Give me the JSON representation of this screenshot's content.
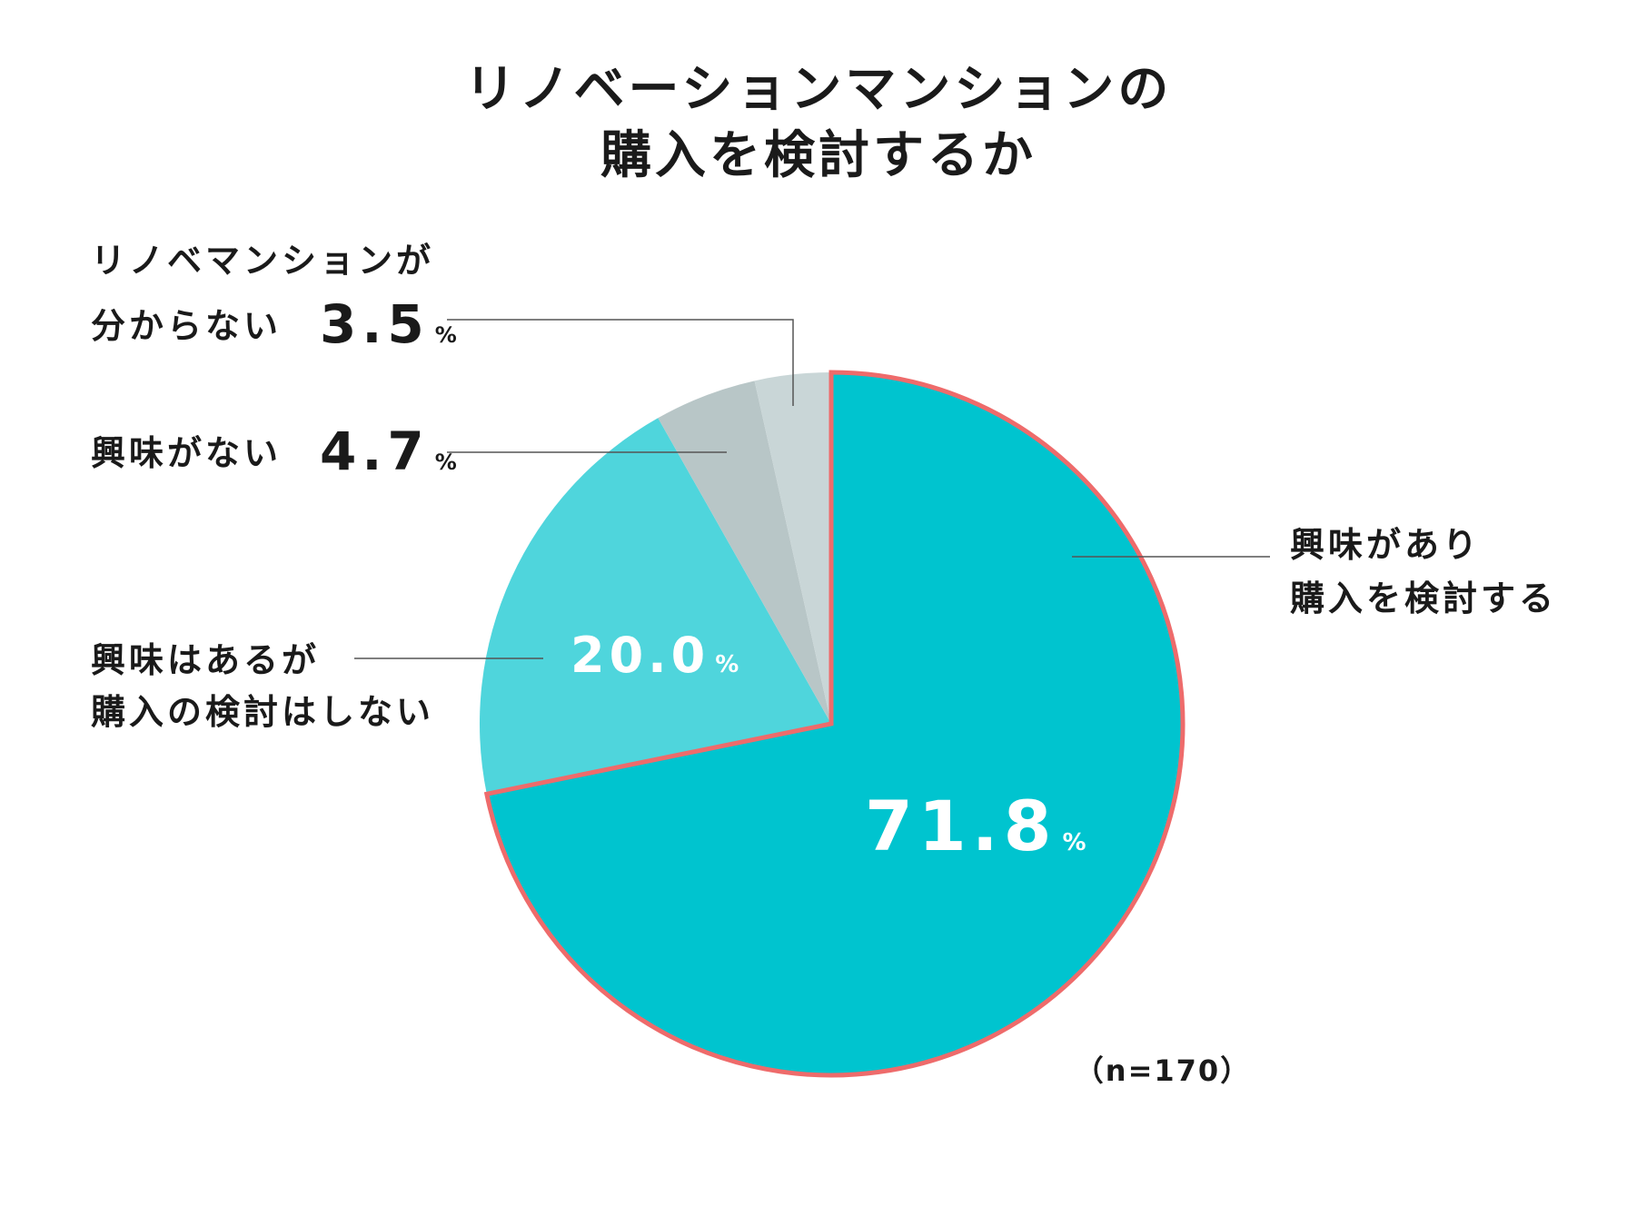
{
  "chart_data": {
    "type": "pie",
    "title_lines": [
      "リノベーションマンションの",
      "購入を検討するか"
    ],
    "slices": [
      {
        "label_lines": [
          "興味があり",
          "購入を検討する"
        ],
        "value": 71.8,
        "value_text": "71.8",
        "unit": "%",
        "color": "#00c4cf"
      },
      {
        "label_lines": [
          "興味はあるが",
          "購入の検討はしない"
        ],
        "value": 20.0,
        "value_text": "20.0",
        "unit": "%",
        "color": "#4fd5dc"
      },
      {
        "label_lines": [
          "興味がない"
        ],
        "value": 4.7,
        "value_text": "4.7",
        "unit": "%",
        "color": "#b8c6c7"
      },
      {
        "label_lines": [
          "リノベマンションが",
          "分からない"
        ],
        "value": 3.5,
        "value_text": "3.5",
        "unit": "%",
        "color": "#c9d6d7"
      }
    ],
    "highlight_outline_color": "#ee6b6b",
    "note": "（n=170）"
  }
}
